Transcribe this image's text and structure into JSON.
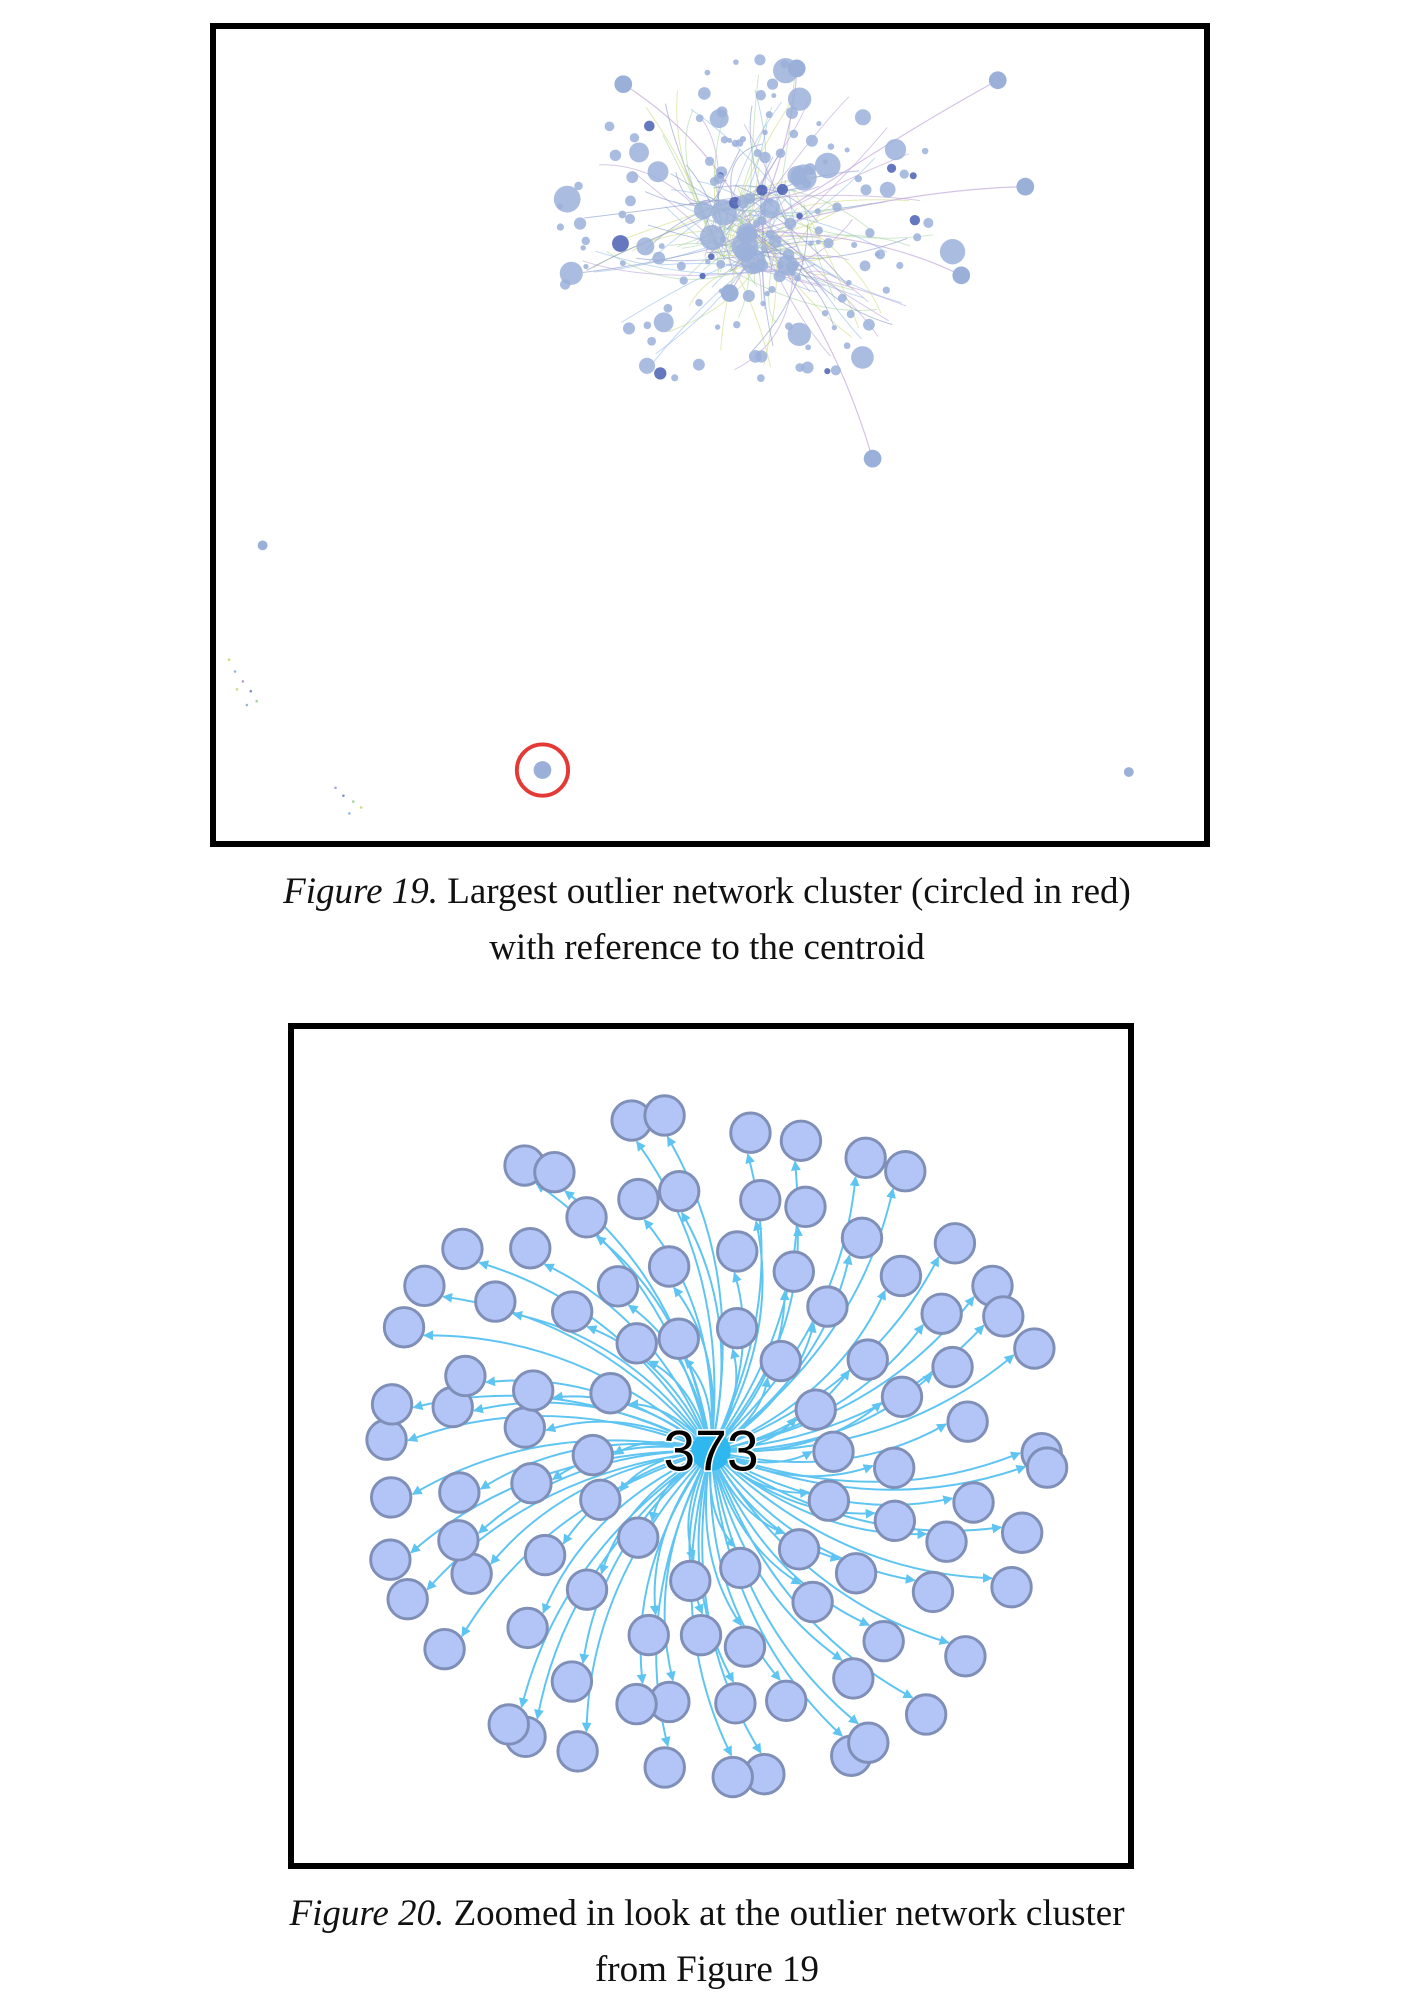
{
  "figure19": {
    "caption_label": "Figure 19.",
    "caption_line1": " Largest outlier network cluster (circled in red)",
    "caption_line2": "with reference to the centroid",
    "highlight_color": "#e53935",
    "node_color": "#9bb0d9",
    "edge_colors": [
      "#c9d97a",
      "#8fb8e8",
      "#b79ad6",
      "#7d8fc4",
      "#a6d3a0"
    ]
  },
  "figure20": {
    "caption_label": "Figure 20.",
    "caption_line1": " Zoomed in look at the outlier network cluster",
    "caption_line2": "from Figure 19",
    "center_node_label": "373",
    "center_color": "#2fb8f0",
    "edge_color": "#5ec4f2",
    "leaf_fill": "#b3c5f7",
    "leaf_stroke": "#7f8fb7",
    "leaf_count": 97
  }
}
